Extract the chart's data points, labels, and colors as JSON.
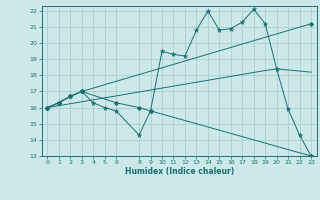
{
  "xlabel": "Humidex (Indice chaleur)",
  "xlim": [
    -0.5,
    23.5
  ],
  "ylim": [
    13,
    22.3
  ],
  "xticks": [
    0,
    1,
    2,
    3,
    4,
    5,
    6,
    8,
    9,
    10,
    11,
    12,
    13,
    14,
    15,
    16,
    17,
    18,
    19,
    20,
    21,
    22,
    23
  ],
  "yticks": [
    13,
    14,
    15,
    16,
    17,
    18,
    19,
    20,
    21,
    22
  ],
  "background_color": "#cce8e8",
  "grid_color": "#aacfcf",
  "line_color": "#1a7070",
  "line1_x": [
    0,
    1,
    2,
    3,
    4,
    5,
    6,
    8,
    9,
    10,
    11,
    12,
    13,
    14,
    15,
    16,
    17,
    18,
    19,
    20,
    21,
    22,
    23
  ],
  "line1_y": [
    16.0,
    16.3,
    16.7,
    17.0,
    16.3,
    16.0,
    15.8,
    14.3,
    15.8,
    19.5,
    19.3,
    19.2,
    20.8,
    22.0,
    20.8,
    20.9,
    21.3,
    22.1,
    21.2,
    18.4,
    15.9,
    14.3,
    13.0
  ],
  "line2_x": [
    0,
    1,
    2,
    3,
    6,
    8,
    9,
    23
  ],
  "line2_y": [
    16.0,
    16.3,
    16.7,
    17.0,
    16.3,
    16.0,
    15.8,
    13.0
  ],
  "line3_x": [
    0,
    1,
    2,
    3,
    23
  ],
  "line3_y": [
    16.0,
    16.3,
    16.7,
    17.0,
    21.2
  ],
  "line4_x": [
    0,
    19,
    20,
    23
  ],
  "line4_y": [
    16.0,
    18.3,
    18.4,
    18.2
  ]
}
